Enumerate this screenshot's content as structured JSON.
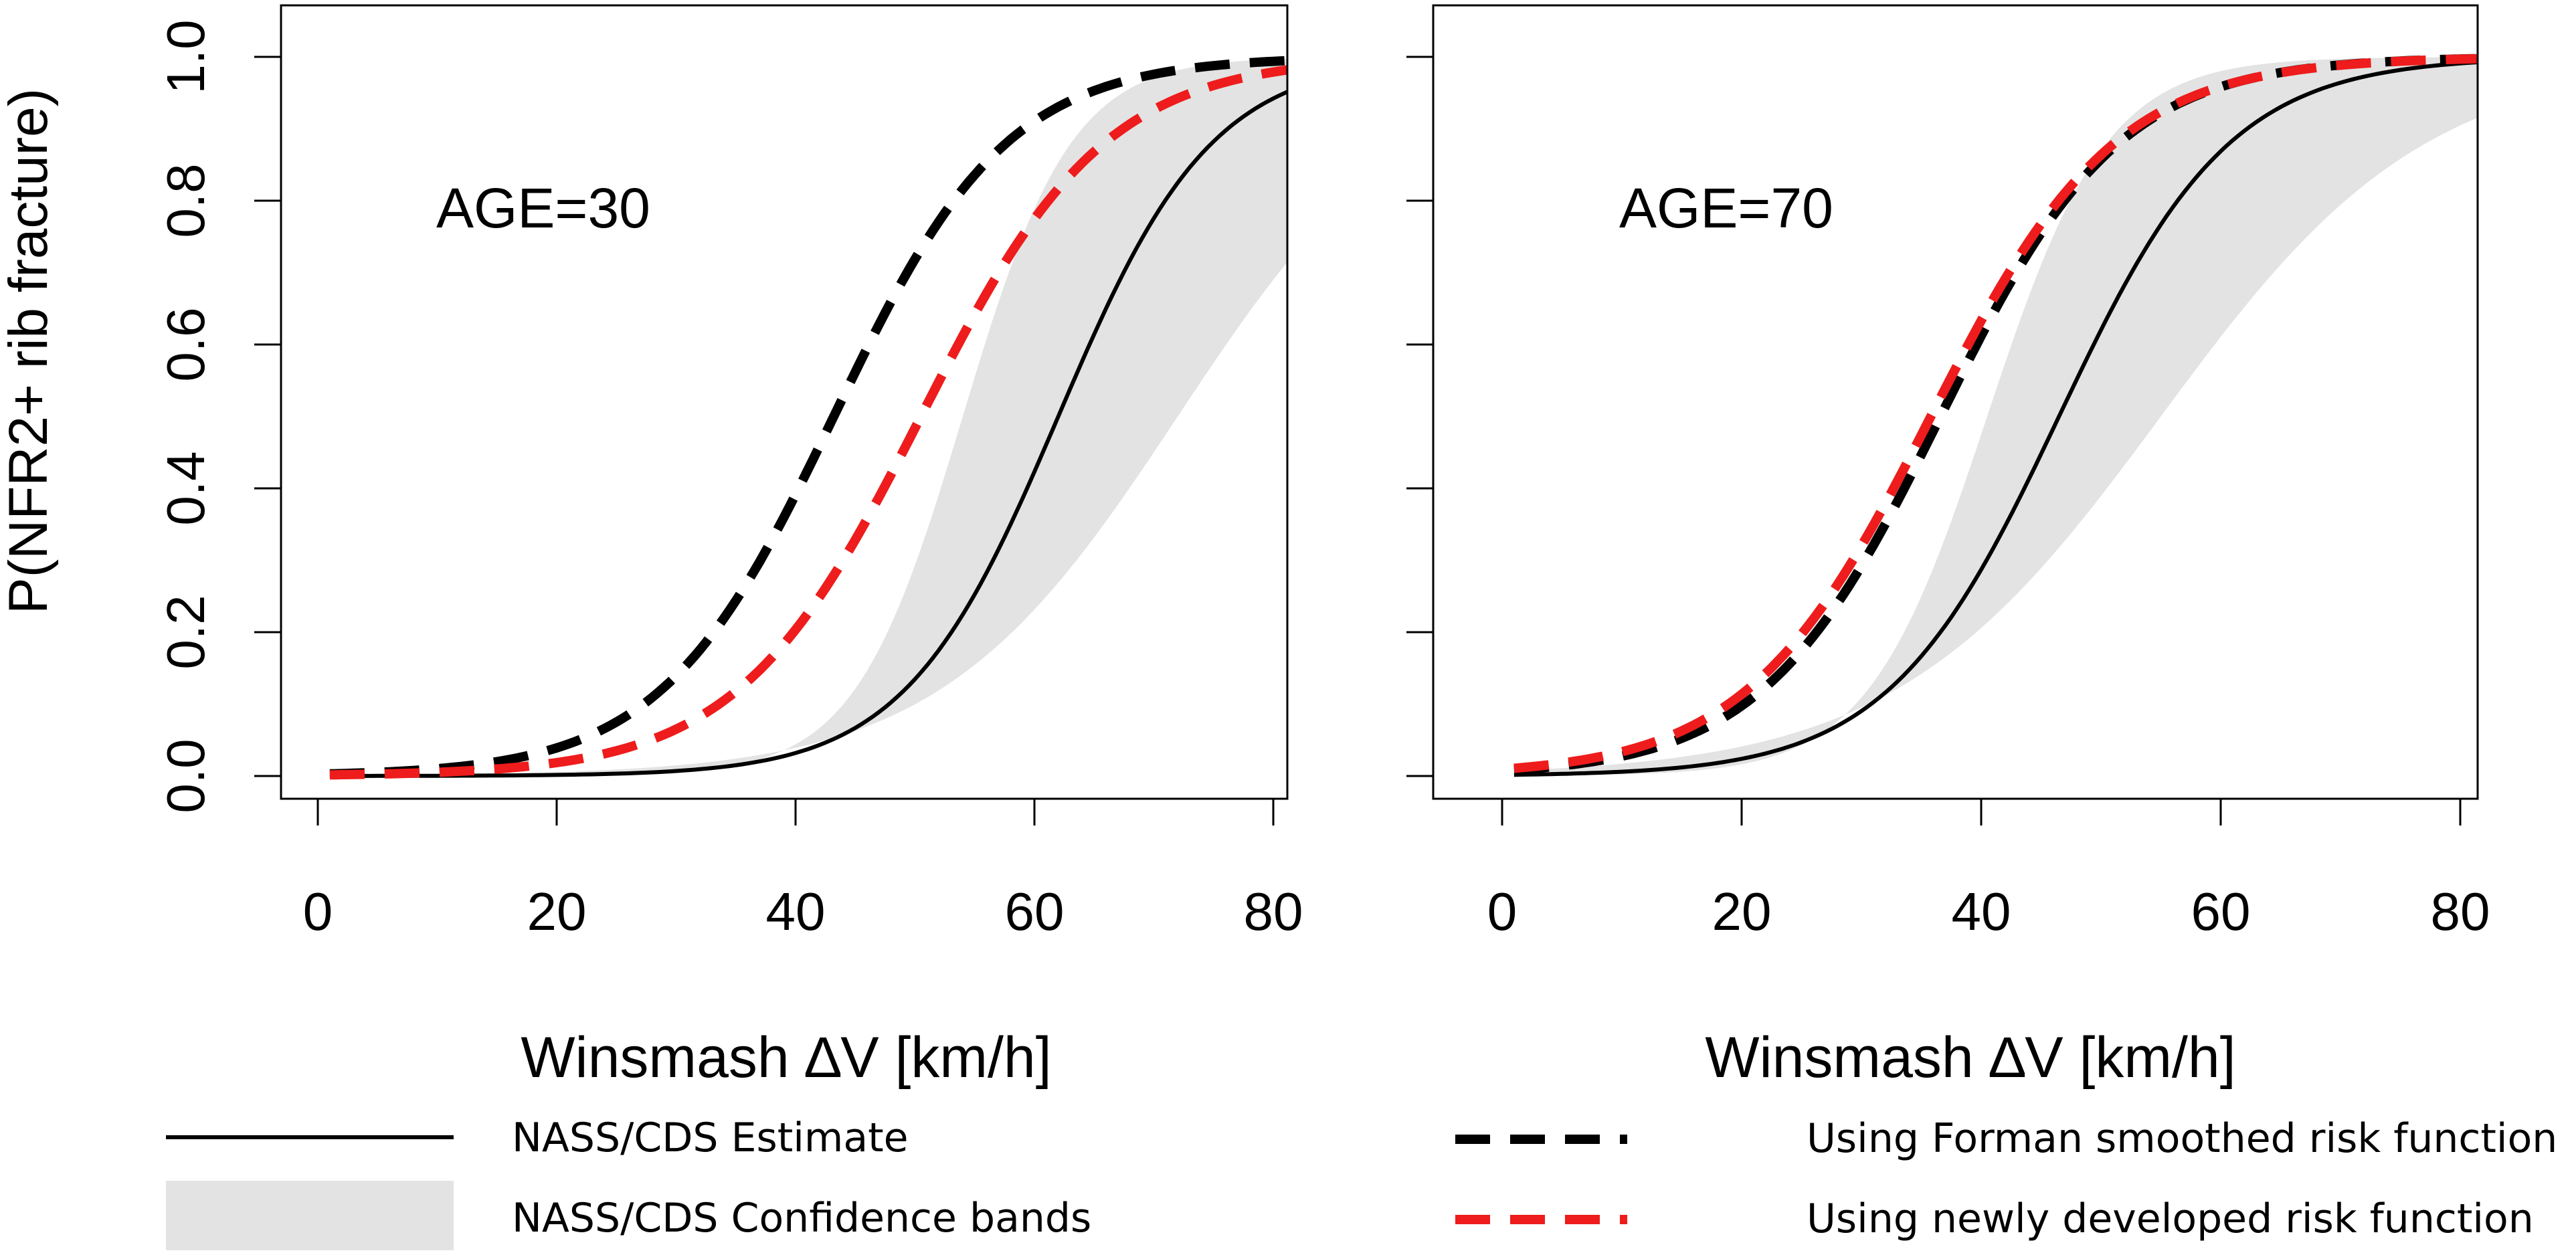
{
  "chart_data": {
    "type": "line",
    "ylabel": "P(NFR2+ rib fracture)",
    "xlabel": "Winsmash ∆V [km/h]",
    "xlim": [
      0,
      80
    ],
    "ylim": [
      0,
      1
    ],
    "xticks": [
      "0",
      "20",
      "40",
      "60",
      "80"
    ],
    "yticks": [
      "0.0",
      "0.2",
      "0.4",
      "0.6",
      "0.8",
      "1.0"
    ],
    "colors": {
      "estimate": "#000000",
      "band": "#e3e3e3",
      "forman": "#000000",
      "newly": "#ee1c1c"
    },
    "legend": {
      "estimate": "NASS/CDS Estimate",
      "band": "NASS/CDS Confidence bands",
      "forman": "Using Forman smoothed risk function",
      "newly": "Using newly developed risk function"
    },
    "panels": [
      {
        "annotation": "AGE=30",
        "estimate": {
          "name": "NASS/CDS Estimate",
          "x0": 62.0,
          "k": 0.155
        },
        "band": {
          "name": "NASS/CDS Confidence bands",
          "lower_x0": 72.0,
          "lower_k": 0.1,
          "upper_x0": 54.0,
          "upper_k": 0.22
        },
        "series": [
          {
            "name": "Using Forman smoothed risk function",
            "x0": 43.2,
            "k": 0.138,
            "style": "dashed"
          },
          {
            "name": "Using newly developed risk function",
            "x0": 50.5,
            "k": 0.13,
            "style": "dashed"
          }
        ]
      },
      {
        "annotation": "AGE=70",
        "estimate": {
          "name": "NASS/CDS Estimate",
          "x0": 46.5,
          "k": 0.14
        },
        "band": {
          "name": "NASS/CDS Confidence bands",
          "lower_x0": 55.0,
          "lower_k": 0.09,
          "upper_x0": 40.5,
          "upper_k": 0.2
        },
        "series": [
          {
            "name": "Using Forman smoothed risk function",
            "x0": 36.6,
            "k": 0.134,
            "style": "dashed"
          },
          {
            "name": "Using newly developed risk function",
            "x0": 35.8,
            "k": 0.13,
            "style": "dashed"
          }
        ]
      }
    ]
  }
}
